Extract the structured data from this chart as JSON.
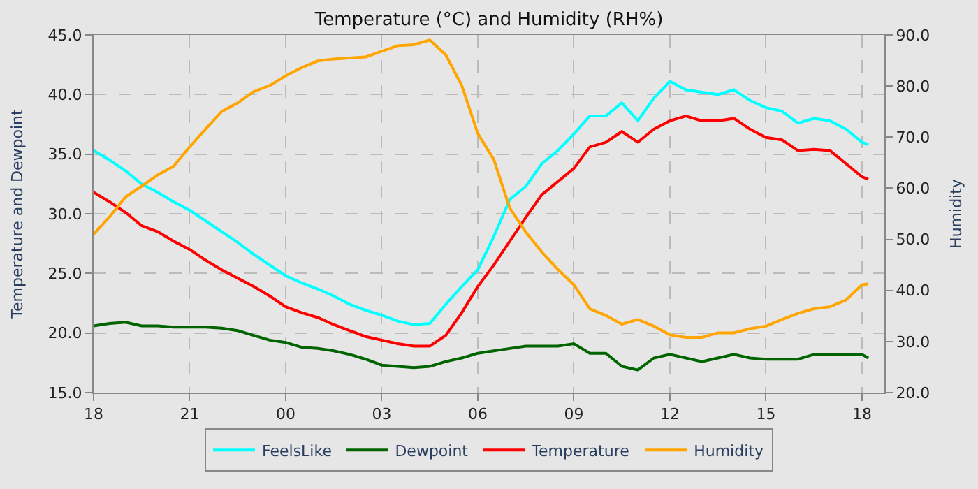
{
  "chart_data": {
    "type": "line",
    "title": "Temperature (°C) and Humidity (RH%)",
    "ylabel": "Temperature and Dewpoint",
    "y2label": "Humidity",
    "x": [
      18,
      18.5,
      19,
      19.5,
      20,
      20.5,
      21,
      21.5,
      22,
      22.5,
      23,
      23.5,
      24,
      24.5,
      25,
      25.5,
      26,
      26.5,
      27,
      27.5,
      28,
      28.5,
      29,
      29.5,
      30,
      30.5,
      31,
      31.5,
      32,
      32.5,
      33,
      33.5,
      34,
      34.5,
      35,
      35.5,
      36,
      36.5,
      37,
      37.5,
      38,
      38.5,
      39,
      39.5,
      40,
      40.5,
      41,
      41.5,
      42,
      42.2
    ],
    "series": [
      {
        "name": "FeelsLike",
        "color": "#00ffff",
        "values": [
          35.3,
          34.5,
          33.6,
          32.5,
          31.8,
          31.0,
          30.3,
          29.4,
          28.5,
          27.6,
          26.6,
          25.7,
          24.8,
          24.2,
          23.7,
          23.1,
          22.4,
          21.9,
          21.5,
          21.0,
          20.7,
          20.8,
          22.4,
          23.9,
          25.3,
          28.1,
          31.2,
          32.3,
          34.2,
          35.3,
          36.7,
          38.2,
          38.2,
          39.3,
          37.8,
          39.7,
          41.1,
          40.4,
          40.2,
          40.0,
          40.4,
          39.5,
          38.9,
          38.6,
          37.6,
          38.0,
          37.8,
          37.1,
          36.0,
          35.8
        ]
      },
      {
        "name": "Dewpoint",
        "color": "#006400",
        "values": [
          20.6,
          20.8,
          20.9,
          20.6,
          20.6,
          20.5,
          20.5,
          20.5,
          20.4,
          20.2,
          19.8,
          19.4,
          19.2,
          18.8,
          18.7,
          18.5,
          18.2,
          17.8,
          17.3,
          17.2,
          17.1,
          17.2,
          17.6,
          17.9,
          18.3,
          18.5,
          18.7,
          18.9,
          18.9,
          18.9,
          19.1,
          18.3,
          18.3,
          17.2,
          16.9,
          17.9,
          18.2,
          17.9,
          17.6,
          17.9,
          18.2,
          17.9,
          17.8,
          17.8,
          17.8,
          18.2,
          18.2,
          18.2,
          18.2,
          17.9
        ]
      },
      {
        "name": "Temperature",
        "color": "#ff0000",
        "values": [
          31.8,
          31.0,
          30.1,
          29.0,
          28.5,
          27.7,
          27.0,
          26.1,
          25.3,
          24.6,
          23.9,
          23.1,
          22.2,
          21.7,
          21.3,
          20.7,
          20.2,
          19.7,
          19.4,
          19.1,
          18.9,
          18.9,
          19.8,
          21.7,
          23.9,
          25.7,
          27.7,
          29.7,
          31.6,
          32.7,
          33.8,
          35.6,
          36.0,
          36.9,
          36.0,
          37.1,
          37.8,
          38.2,
          37.8,
          37.8,
          38.0,
          37.1,
          36.4,
          36.2,
          35.3,
          35.4,
          35.3,
          34.2,
          33.1,
          32.9
        ]
      },
      {
        "name": "Humidity",
        "color": "#ffa500",
        "axis": "y2",
        "values": [
          51.0,
          54.4,
          58.3,
          60.4,
          62.6,
          64.3,
          68.1,
          71.6,
          75.0,
          76.7,
          78.9,
          80.1,
          82.0,
          83.6,
          84.9,
          85.3,
          85.5,
          85.7,
          86.8,
          87.9,
          88.1,
          89.0,
          86.1,
          80.1,
          70.7,
          65.6,
          56.1,
          51.4,
          47.5,
          44.1,
          41.1,
          36.4,
          35.1,
          33.4,
          34.3,
          33.0,
          31.3,
          30.8,
          30.8,
          31.7,
          31.7,
          32.5,
          33.0,
          34.3,
          35.5,
          36.4,
          36.8,
          38.1,
          41.1,
          41.3
        ]
      }
    ],
    "xlim": [
      18,
      42.7
    ],
    "xticks": [
      {
        "value": 18,
        "label": "18"
      },
      {
        "value": 21,
        "label": "21"
      },
      {
        "value": 24,
        "label": "00"
      },
      {
        "value": 27,
        "label": "03"
      },
      {
        "value": 30,
        "label": "06"
      },
      {
        "value": 33,
        "label": "09"
      },
      {
        "value": 36,
        "label": "12"
      },
      {
        "value": 39,
        "label": "15"
      },
      {
        "value": 42,
        "label": "18"
      }
    ],
    "ylim": [
      15,
      45
    ],
    "yticks": [
      {
        "value": 15,
        "label": "15.0"
      },
      {
        "value": 20,
        "label": "20.0"
      },
      {
        "value": 25,
        "label": "25.0"
      },
      {
        "value": 30,
        "label": "30.0"
      },
      {
        "value": 35,
        "label": "35.0"
      },
      {
        "value": 40,
        "label": "40.0"
      },
      {
        "value": 45,
        "label": "45.0"
      }
    ],
    "y2lim": [
      20,
      90
    ],
    "y2ticks": [
      {
        "value": 20,
        "label": "20.0"
      },
      {
        "value": 30,
        "label": "30.0"
      },
      {
        "value": 40,
        "label": "40.0"
      },
      {
        "value": 50,
        "label": "50.0"
      },
      {
        "value": 60,
        "label": "60.0"
      },
      {
        "value": 70,
        "label": "70.0"
      },
      {
        "value": 80,
        "label": "80.0"
      },
      {
        "value": 90,
        "label": "90.0"
      }
    ],
    "grid": true,
    "legend": "bottom",
    "marker": "none",
    "line_style": "solid"
  }
}
